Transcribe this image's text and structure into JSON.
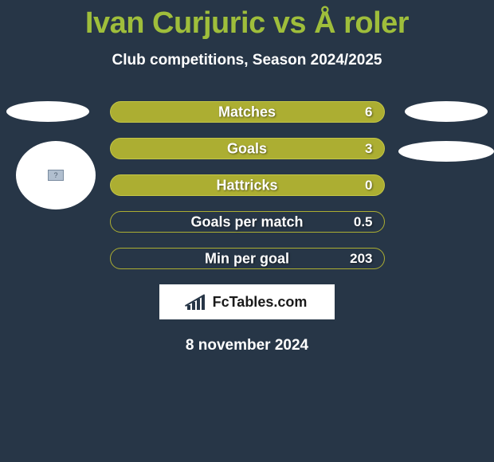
{
  "header": {
    "title": "Ivan Curjuric vs Å roler",
    "subtitle": "Club competitions, Season 2024/2025",
    "title_color": "#9fbe3b",
    "subtitle_color": "#ffffff"
  },
  "background_color": "#273647",
  "stats": {
    "row_bg_filled": "#acae32",
    "row_border": "#c5c746",
    "row_bg_dark": "#273647",
    "row_border_dark": "#acae32",
    "text_color": "#ffffff",
    "rows": [
      {
        "label": "Matches",
        "value": "6",
        "variant": "filled"
      },
      {
        "label": "Goals",
        "value": "3",
        "variant": "filled"
      },
      {
        "label": "Hattricks",
        "value": "0",
        "variant": "filled"
      },
      {
        "label": "Goals per match",
        "value": "0.5",
        "variant": "dark"
      },
      {
        "label": "Min per goal",
        "value": "203",
        "variant": "dark"
      }
    ]
  },
  "side_shapes": {
    "color": "#ffffff"
  },
  "logo": {
    "text": "FcTables.com",
    "bg": "#ffffff",
    "text_color": "#1a1a1a",
    "icon_color": "#273647"
  },
  "date": "8 november 2024"
}
